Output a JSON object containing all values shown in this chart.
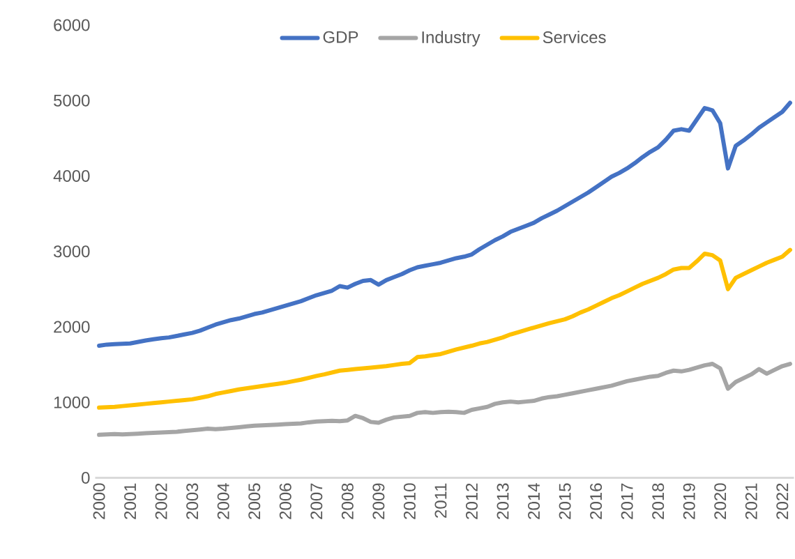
{
  "chart_data": {
    "type": "line",
    "categories": [
      "2000",
      null,
      null,
      null,
      "2001",
      null,
      null,
      null,
      "2002",
      null,
      null,
      null,
      "2003",
      null,
      null,
      null,
      "2004",
      null,
      null,
      null,
      "2005",
      null,
      null,
      null,
      "2006",
      null,
      null,
      null,
      "2007",
      null,
      null,
      null,
      "2008",
      null,
      null,
      null,
      "2009",
      null,
      null,
      null,
      "2010",
      null,
      null,
      null,
      "2011",
      null,
      null,
      null,
      "2012",
      null,
      null,
      null,
      "2013",
      null,
      null,
      null,
      "2014",
      null,
      null,
      null,
      "2015",
      null,
      null,
      null,
      "2016",
      null,
      null,
      null,
      "2017",
      null,
      null,
      null,
      "2018",
      null,
      null,
      null,
      "2019",
      null,
      null,
      null,
      "2020",
      null,
      null,
      null,
      "2021",
      null,
      null,
      null,
      "2022",
      null
    ],
    "series": [
      {
        "name": "GDP",
        "color": "#4472c4",
        "values": [
          1750,
          1765,
          1770,
          1775,
          1780,
          1800,
          1820,
          1835,
          1850,
          1860,
          1880,
          1900,
          1920,
          1950,
          1990,
          2030,
          2060,
          2090,
          2110,
          2140,
          2170,
          2190,
          2220,
          2250,
          2280,
          2310,
          2340,
          2380,
          2420,
          2450,
          2480,
          2540,
          2520,
          2570,
          2610,
          2620,
          2560,
          2620,
          2660,
          2700,
          2750,
          2790,
          2810,
          2830,
          2850,
          2880,
          2910,
          2930,
          2960,
          3030,
          3090,
          3150,
          3200,
          3260,
          3300,
          3340,
          3380,
          3440,
          3490,
          3540,
          3600,
          3660,
          3720,
          3780,
          3850,
          3920,
          3990,
          4040,
          4100,
          4170,
          4250,
          4320,
          4380,
          4480,
          4600,
          4620,
          4600,
          4750,
          4900,
          4870,
          4700,
          4100,
          4400,
          4470,
          4550,
          4640,
          4710,
          4780,
          4850,
          4970
        ]
      },
      {
        "name": "Industry",
        "color": "#a5a5a5",
        "values": [
          570,
          575,
          580,
          575,
          580,
          585,
          590,
          595,
          600,
          605,
          610,
          620,
          630,
          640,
          650,
          645,
          650,
          660,
          670,
          680,
          690,
          695,
          700,
          705,
          710,
          715,
          720,
          735,
          745,
          750,
          755,
          750,
          760,
          820,
          790,
          740,
          730,
          770,
          800,
          810,
          820,
          860,
          870,
          860,
          870,
          875,
          870,
          860,
          900,
          920,
          940,
          980,
          1000,
          1010,
          1000,
          1010,
          1020,
          1050,
          1070,
          1080,
          1100,
          1120,
          1140,
          1160,
          1180,
          1200,
          1220,
          1250,
          1280,
          1300,
          1320,
          1340,
          1350,
          1390,
          1420,
          1410,
          1430,
          1460,
          1490,
          1510,
          1450,
          1180,
          1270,
          1320,
          1370,
          1440,
          1380,
          1430,
          1480,
          1510
        ]
      },
      {
        "name": "Services",
        "color": "#ffc000",
        "values": [
          930,
          935,
          940,
          950,
          960,
          970,
          980,
          990,
          1000,
          1010,
          1020,
          1030,
          1040,
          1060,
          1080,
          1110,
          1130,
          1150,
          1170,
          1185,
          1200,
          1215,
          1230,
          1245,
          1260,
          1280,
          1300,
          1325,
          1350,
          1370,
          1395,
          1420,
          1430,
          1440,
          1450,
          1460,
          1470,
          1480,
          1495,
          1510,
          1520,
          1600,
          1610,
          1625,
          1640,
          1670,
          1700,
          1725,
          1750,
          1780,
          1800,
          1830,
          1860,
          1900,
          1930,
          1960,
          1990,
          2020,
          2050,
          2075,
          2100,
          2140,
          2190,
          2230,
          2280,
          2330,
          2380,
          2420,
          2470,
          2520,
          2570,
          2610,
          2650,
          2700,
          2760,
          2780,
          2780,
          2870,
          2970,
          2950,
          2880,
          2500,
          2650,
          2700,
          2750,
          2800,
          2850,
          2890,
          2930,
          3020
        ]
      }
    ],
    "ylim": [
      0,
      6000
    ],
    "yticks": [
      0,
      1000,
      2000,
      3000,
      4000,
      5000,
      6000
    ],
    "legend": "top"
  }
}
